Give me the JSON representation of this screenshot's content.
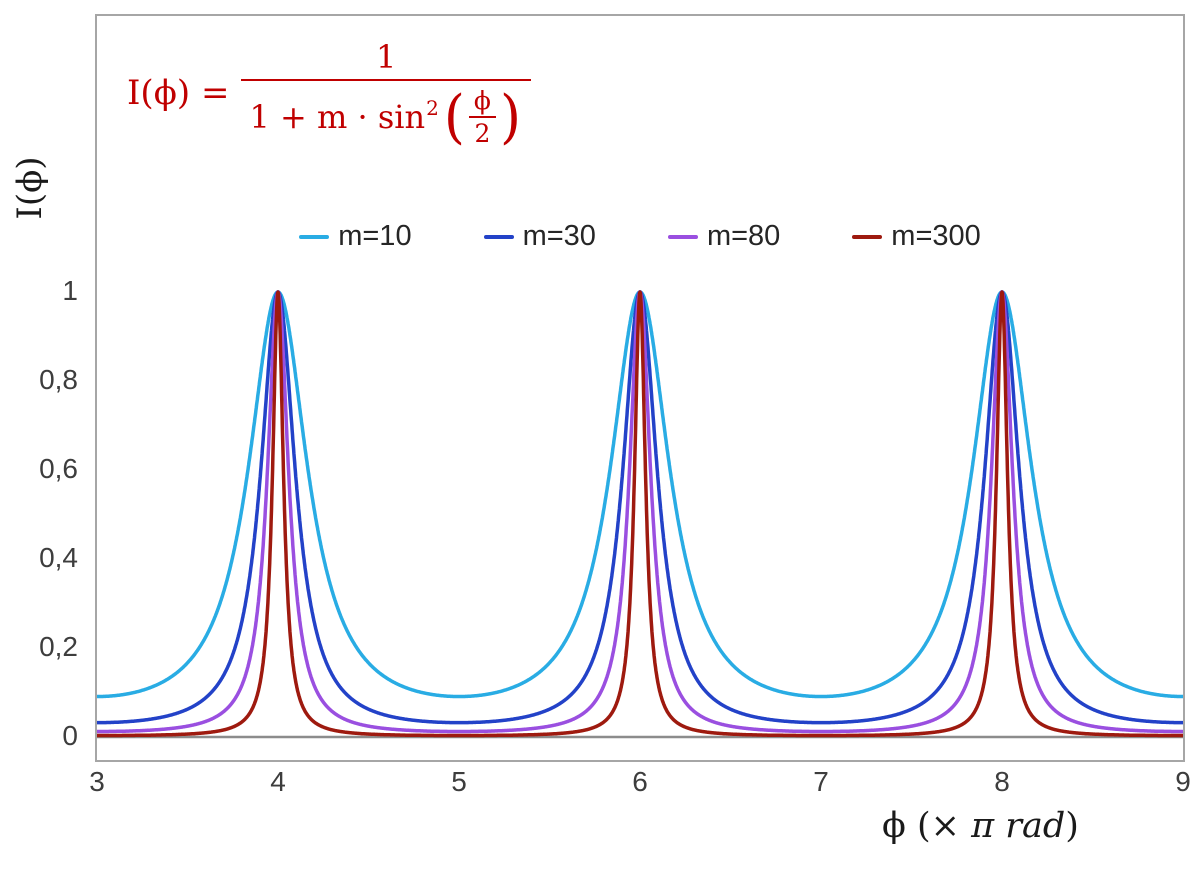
{
  "axes": {
    "y_title": "I(ϕ)",
    "x_title_symbol": "ϕ",
    "x_title_open": "  (× ",
    "x_title_unit": "π rad",
    "x_title_close": ")"
  },
  "formula": {
    "lhs": "I(ϕ) =",
    "numerator": "1",
    "den_prefix": "1 + m · sin",
    "den_exp": "2",
    "paren_open": "(",
    "inner_num": "ϕ",
    "inner_den": "2",
    "paren_close": ")"
  },
  "chart_data": {
    "type": "line",
    "title": "",
    "formula_text": "I(ϕ) = 1 / (1 + m·sin²(ϕ/2))",
    "xlabel": "ϕ (× π rad)",
    "ylabel": "I(ϕ)",
    "x_in_units_of": "π rad",
    "xlim": [
      3,
      9
    ],
    "ylim": [
      0,
      1.62
    ],
    "grid": false,
    "legend_position": "top-center",
    "x_ticks": [
      {
        "value": 3,
        "label": "3"
      },
      {
        "value": 4,
        "label": "4"
      },
      {
        "value": 5,
        "label": "5"
      },
      {
        "value": 6,
        "label": "6"
      },
      {
        "value": 7,
        "label": "7"
      },
      {
        "value": 8,
        "label": "8"
      },
      {
        "value": 9,
        "label": "9"
      }
    ],
    "y_ticks": [
      {
        "value": 1,
        "label": "1"
      },
      {
        "value": 0.8,
        "label": "0,8"
      },
      {
        "value": 0.6,
        "label": "0,6"
      },
      {
        "value": 0.4,
        "label": "0,4"
      },
      {
        "value": 0.2,
        "label": "0,2"
      },
      {
        "value": 0,
        "label": "0"
      }
    ],
    "series": [
      {
        "label": "m=10",
        "m": 10,
        "color": "#29ace4",
        "peak_y": 1,
        "min_y": 0.0909
      },
      {
        "label": "m=30",
        "m": 30,
        "color": "#2342c8",
        "peak_y": 1,
        "min_y": 0.0323
      },
      {
        "label": "m=80",
        "m": 80,
        "color": "#9a4fe0",
        "peak_y": 1,
        "min_y": 0.0123
      },
      {
        "label": "m=300",
        "m": 300,
        "color": "#9e1a0f",
        "peak_y": 1,
        "min_y": 0.0033
      }
    ],
    "peaks_x": [
      4,
      6,
      8
    ],
    "sample_step": 0.002,
    "axis_line_color": "#8c8c8c",
    "frame_color": "#a6a6a6"
  }
}
